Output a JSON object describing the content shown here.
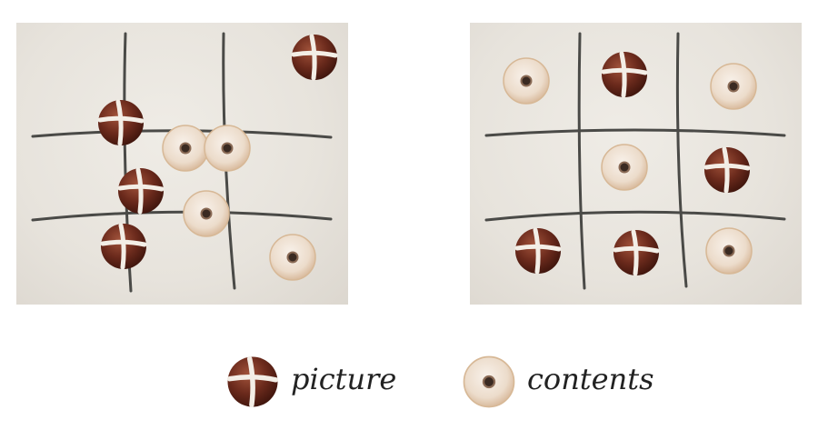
{
  "legend": {
    "bun": {
      "label": "picture",
      "icon": "hot-cross-bun-icon"
    },
    "donut": {
      "label": "contents",
      "icon": "sugared-donut-icon"
    }
  },
  "colors": {
    "background": "#ffffff",
    "board": "#e7e3dc",
    "grid_line": "#4a4a47",
    "bun": "#6b2a1c",
    "bun_cross": "#f3eee6",
    "donut": "#e9d7c2",
    "label": "#222222"
  }
}
